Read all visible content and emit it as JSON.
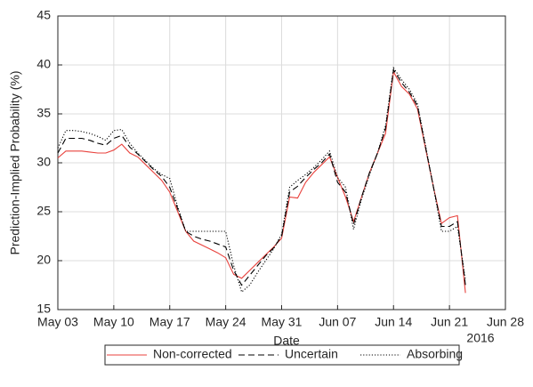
{
  "chart_data": {
    "type": "line",
    "xlabel": "Date",
    "ylabel": "Prediction-Implied Probability (%)",
    "x_year_label": "2016",
    "x": [
      "2016-05-03",
      "2016-05-04",
      "2016-05-05",
      "2016-05-06",
      "2016-05-07",
      "2016-05-08",
      "2016-05-09",
      "2016-05-10",
      "2016-05-11",
      "2016-05-12",
      "2016-05-13",
      "2016-05-14",
      "2016-05-15",
      "2016-05-16",
      "2016-05-17",
      "2016-05-18",
      "2016-05-19",
      "2016-05-20",
      "2016-05-21",
      "2016-05-22",
      "2016-05-23",
      "2016-05-24",
      "2016-05-25",
      "2016-05-26",
      "2016-05-27",
      "2016-05-28",
      "2016-05-29",
      "2016-05-30",
      "2016-05-31",
      "2016-06-01",
      "2016-06-02",
      "2016-06-03",
      "2016-06-04",
      "2016-06-05",
      "2016-06-06",
      "2016-06-07",
      "2016-06-08",
      "2016-06-09",
      "2016-06-10",
      "2016-06-11",
      "2016-06-12",
      "2016-06-13",
      "2016-06-14",
      "2016-06-15",
      "2016-06-16",
      "2016-06-17",
      "2016-06-18",
      "2016-06-19",
      "2016-06-20",
      "2016-06-21",
      "2016-06-22",
      "2016-06-23"
    ],
    "series": [
      {
        "name": "Non-corrected",
        "color": "#e8413c",
        "linestyle": "solid",
        "values": [
          30.5,
          31.2,
          31.2,
          31.2,
          31.1,
          31.0,
          31.0,
          31.3,
          31.9,
          31.0,
          30.6,
          29.8,
          29.0,
          28.2,
          27.0,
          25.0,
          23.0,
          22.0,
          21.6,
          21.2,
          20.8,
          20.3,
          18.6,
          18.2,
          19.0,
          19.8,
          20.6,
          21.4,
          22.3,
          26.5,
          26.4,
          28.0,
          29.0,
          29.8,
          30.6,
          28.5,
          26.5,
          24.0,
          26.5,
          29.0,
          31.0,
          33.0,
          39.3,
          37.8,
          37.0,
          35.5,
          31.5,
          27.5,
          23.8,
          24.4,
          24.6,
          16.7
        ]
      },
      {
        "name": "Uncertain",
        "color": "#000000",
        "linestyle": "dashed",
        "values": [
          31.0,
          32.5,
          32.5,
          32.5,
          32.3,
          32.0,
          31.8,
          32.5,
          32.8,
          31.6,
          30.9,
          30.1,
          29.3,
          28.6,
          27.5,
          25.3,
          23.0,
          22.5,
          22.2,
          22.0,
          21.7,
          21.4,
          19.0,
          17.5,
          18.5,
          19.5,
          20.5,
          21.3,
          22.5,
          27.0,
          27.6,
          28.5,
          29.3,
          30.0,
          30.9,
          28.0,
          27.0,
          23.7,
          26.5,
          29.0,
          31.0,
          33.5,
          39.5,
          38.2,
          37.2,
          35.8,
          31.6,
          27.5,
          23.5,
          23.5,
          24.0,
          17.5
        ]
      },
      {
        "name": "Absorbing",
        "color": "#000000",
        "linestyle": "dotted",
        "values": [
          31.5,
          33.3,
          33.3,
          33.2,
          33.0,
          32.7,
          32.3,
          33.3,
          33.4,
          32.0,
          31.0,
          30.2,
          29.4,
          28.8,
          28.4,
          25.5,
          23.0,
          23.0,
          23.0,
          23.0,
          23.0,
          23.0,
          19.5,
          16.8,
          17.5,
          18.8,
          20.0,
          21.2,
          22.7,
          27.5,
          28.2,
          28.8,
          29.5,
          30.3,
          31.2,
          28.5,
          27.5,
          23.2,
          26.3,
          28.8,
          31.0,
          33.8,
          39.7,
          38.5,
          37.5,
          36.0,
          31.8,
          27.5,
          23.0,
          23.0,
          23.5,
          18.0
        ]
      }
    ],
    "xlim": [
      "2016-05-03",
      "2016-06-28"
    ],
    "xticks": [
      {
        "value": "2016-05-03",
        "label": "May 03"
      },
      {
        "value": "2016-05-10",
        "label": "May 10"
      },
      {
        "value": "2016-05-17",
        "label": "May 17"
      },
      {
        "value": "2016-05-24",
        "label": "May 24"
      },
      {
        "value": "2016-05-31",
        "label": "May 31"
      },
      {
        "value": "2016-06-07",
        "label": "Jun 07"
      },
      {
        "value": "2016-06-14",
        "label": "Jun 14"
      },
      {
        "value": "2016-06-21",
        "label": "Jun 21"
      },
      {
        "value": "2016-06-28",
        "label": "Jun 28"
      }
    ],
    "ylim": [
      15,
      45
    ],
    "yticks": [
      15,
      20,
      25,
      30,
      35,
      40,
      45
    ],
    "grid": true,
    "legend": "bottom"
  }
}
